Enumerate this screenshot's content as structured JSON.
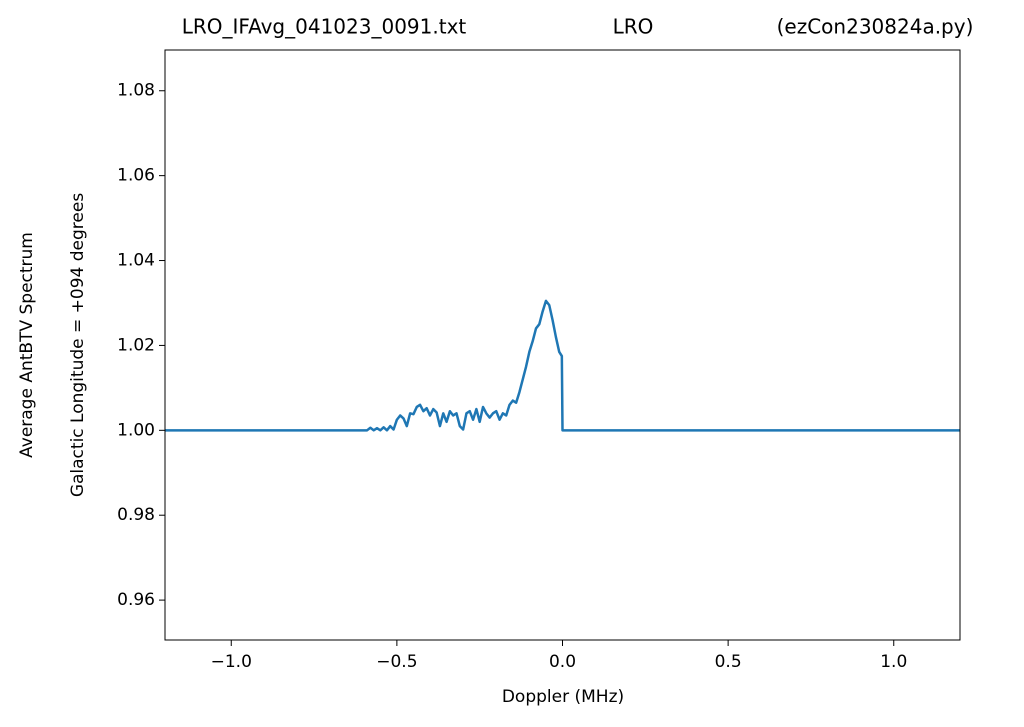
{
  "chart_data": {
    "type": "line",
    "title_parts": [
      "LRO_IFAvg_041023_0091.txt",
      "LRO",
      "(ezCon230824a.py)"
    ],
    "xlabel": "Doppler (MHz)",
    "ylabel": [
      "Average AntBTV Spectrum",
      "Galactic Longitude = +094 degrees"
    ],
    "xlim": [
      -1.2,
      1.2
    ],
    "ylim": [
      0.9506,
      1.0896
    ],
    "xticks": [
      {
        "value": -1,
        "label": "−1.0"
      },
      {
        "value": -0.5,
        "label": "−0.5"
      },
      {
        "value": 0,
        "label": "0.0"
      },
      0.5,
      {
        "value": 1,
        "label": "1.0"
      }
    ],
    "yticks": [
      0.96,
      0.98,
      {
        "value": 1,
        "label": "1.00"
      },
      1.02,
      1.04,
      1.06,
      1.08
    ],
    "series": [
      {
        "color": "#1f77b4",
        "x": [
          -1.2,
          -0.59,
          -0.58,
          -0.57,
          -0.56,
          -0.55,
          -0.54,
          -0.53,
          -0.52,
          -0.51,
          -0.5,
          -0.49,
          -0.48,
          -0.47,
          -0.46,
          -0.45,
          -0.44,
          -0.43,
          -0.42,
          -0.41,
          -0.4,
          -0.39,
          -0.38,
          -0.37,
          -0.36,
          -0.35,
          -0.34,
          -0.33,
          -0.32,
          -0.31,
          -0.3,
          -0.29,
          -0.28,
          -0.27,
          -0.26,
          -0.25,
          -0.24,
          -0.23,
          -0.22,
          -0.21,
          -0.2,
          -0.19,
          -0.18,
          -0.17,
          -0.16,
          -0.15,
          -0.14,
          -0.13,
          -0.12,
          -0.11,
          -0.1,
          -0.09,
          -0.08,
          -0.07,
          -0.06,
          -0.05,
          -0.04,
          -0.03,
          -0.02,
          -0.01,
          -0.002,
          0.0,
          1.2
        ],
        "values": [
          1.0,
          1.0,
          1.0006,
          1.0,
          1.0005,
          1.0,
          1.0007,
          1.0,
          1.001,
          1.0002,
          1.0025,
          1.0035,
          1.0028,
          1.001,
          1.004,
          1.0038,
          1.0055,
          1.006,
          1.0045,
          1.0052,
          1.0035,
          1.005,
          1.0042,
          1.001,
          1.004,
          1.002,
          1.0045,
          1.0035,
          1.004,
          1.001,
          1.0002,
          1.004,
          1.0045,
          1.0025,
          1.005,
          1.002,
          1.0055,
          1.004,
          1.003,
          1.004,
          1.0045,
          1.0025,
          1.004,
          1.0035,
          1.006,
          1.007,
          1.0065,
          1.009,
          1.012,
          1.015,
          1.0185,
          1.021,
          1.024,
          1.025,
          1.028,
          1.0305,
          1.0295,
          1.026,
          1.022,
          1.0185,
          1.0175,
          1.0,
          1.0
        ]
      }
    ]
  }
}
